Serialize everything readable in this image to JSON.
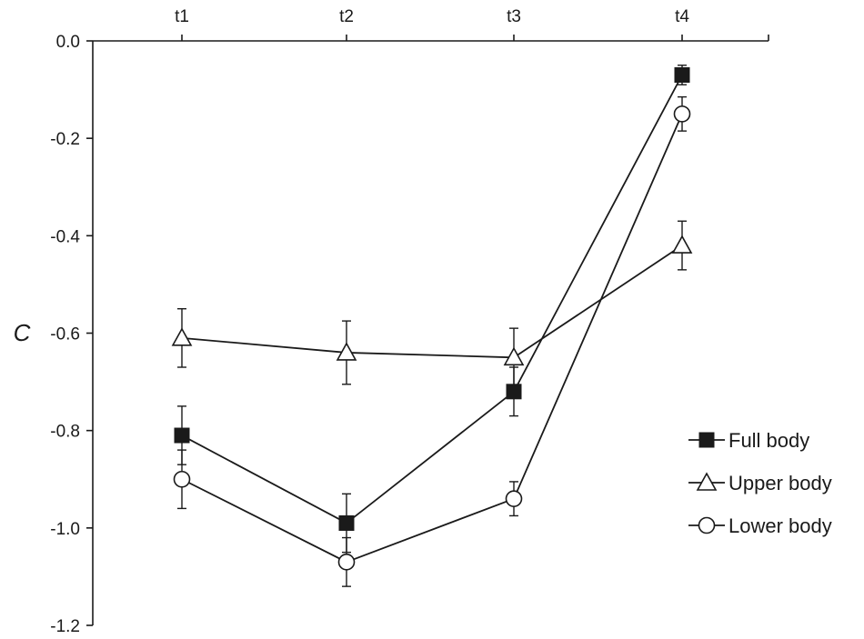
{
  "chart_data": {
    "type": "line",
    "title": "",
    "xlabel": "",
    "ylabel": "C",
    "categories": [
      "t1",
      "t2",
      "t3",
      "t4"
    ],
    "x_axis_position": "top",
    "ylim": [
      -1.2,
      0.0
    ],
    "yticks": [
      0.0,
      -0.2,
      -0.4,
      -0.6,
      -0.8,
      -1.0,
      -1.2
    ],
    "ytick_labels": [
      "0.0",
      "-0.2",
      "-0.4",
      "-0.6",
      "-0.8",
      "-1.0",
      "-1.2"
    ],
    "grid": false,
    "legend_position": "right",
    "series": [
      {
        "name": "Full body",
        "marker": "filled-square",
        "values": [
          -0.81,
          -0.99,
          -0.72,
          -0.07
        ],
        "error": [
          0.06,
          0.06,
          0.05,
          0.02
        ]
      },
      {
        "name": "Upper body",
        "marker": "open-triangle",
        "values": [
          -0.61,
          -0.64,
          -0.65,
          -0.42
        ],
        "error": [
          0.06,
          0.065,
          0.06,
          0.05
        ]
      },
      {
        "name": "Lower body",
        "marker": "open-circle",
        "values": [
          -0.9,
          -1.07,
          -0.94,
          -0.15
        ],
        "error": [
          0.06,
          0.05,
          0.035,
          0.035
        ]
      }
    ]
  }
}
